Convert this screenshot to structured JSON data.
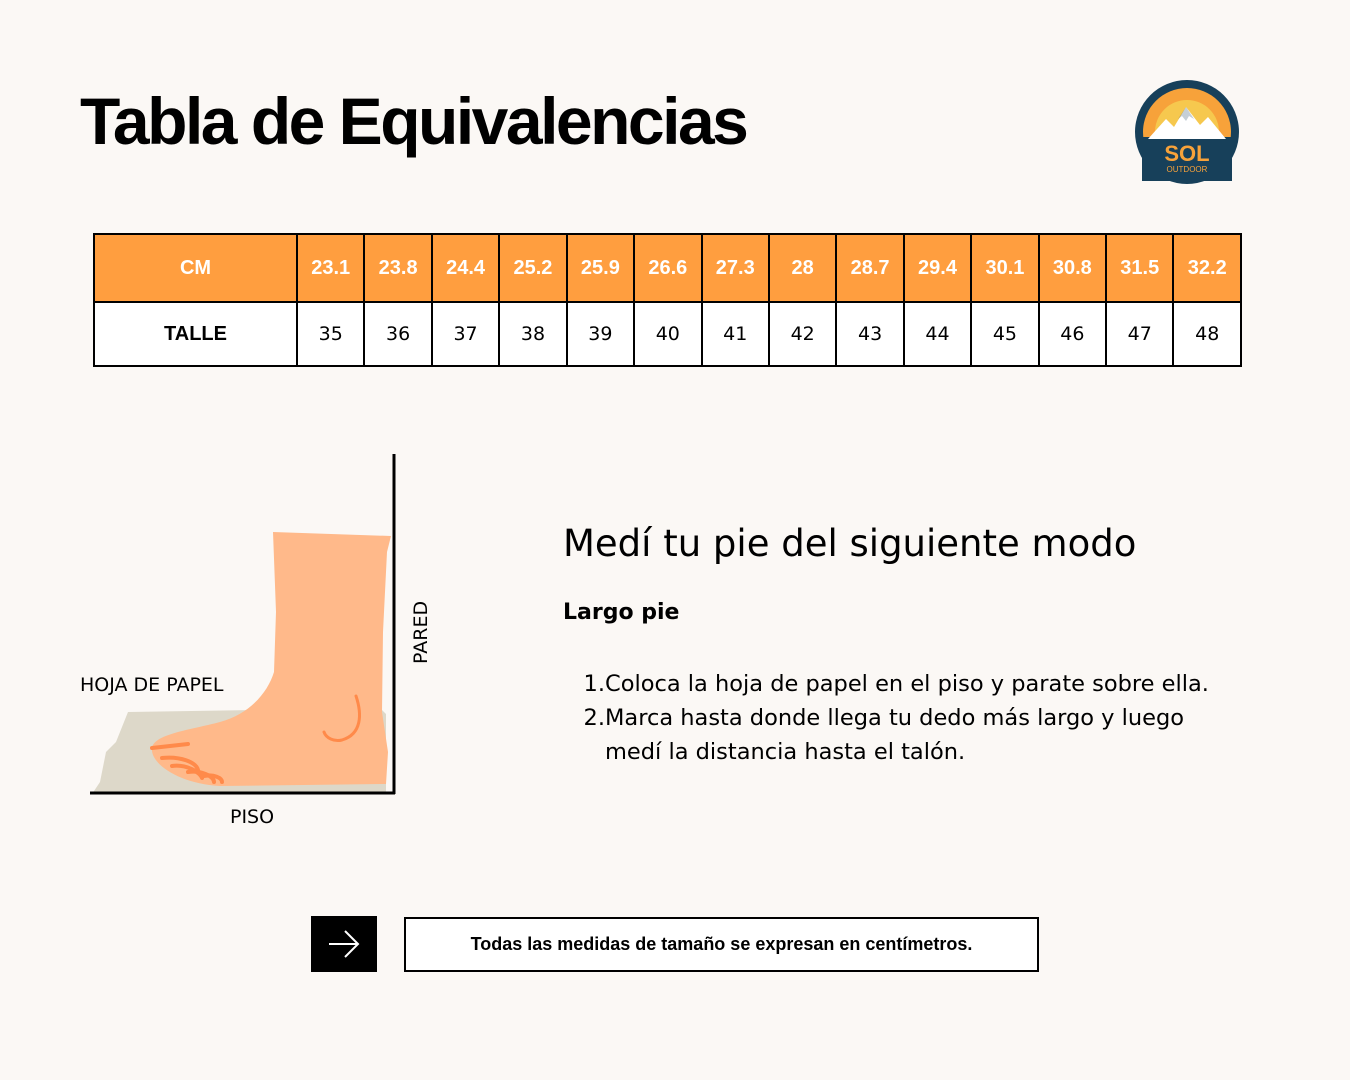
{
  "title": "Tabla de Equivalencias",
  "logo": {
    "text_main": "SOL",
    "text_sub": "OUTDOOR"
  },
  "size_table": {
    "cm_header": "CM",
    "talle_header": "TALLE",
    "cm": [
      "23.1",
      "23.8",
      "24.4",
      "25.2",
      "25.9",
      "26.6",
      "27.3",
      "28",
      "28.7",
      "29.4",
      "30.1",
      "30.8",
      "31.5",
      "32.2"
    ],
    "talle": [
      "35",
      "36",
      "37",
      "38",
      "39",
      "40",
      "41",
      "42",
      "43",
      "44",
      "45",
      "46",
      "47",
      "48"
    ]
  },
  "illustration": {
    "label_paper": "HOJA DE PAPEL",
    "label_floor": "PISO",
    "label_wall": "PARED"
  },
  "instructions": {
    "title": "Medí tu pie del siguiente modo",
    "subtitle": "Largo pie",
    "steps": [
      {
        "num": "1.",
        "text": "Coloca la hoja de papel en el piso y parate sobre ella."
      },
      {
        "num": "2.",
        "text": "Marca hasta donde llega tu dedo más largo y luego medí la distancia hasta el talón."
      }
    ]
  },
  "note": "Todas las medidas de tamaño se expresan en centímetros.",
  "colors": {
    "accent": "#ff9e3f",
    "background": "#fbf8f5",
    "foot": "#ffb98a",
    "paper": "#ddd8c9"
  }
}
